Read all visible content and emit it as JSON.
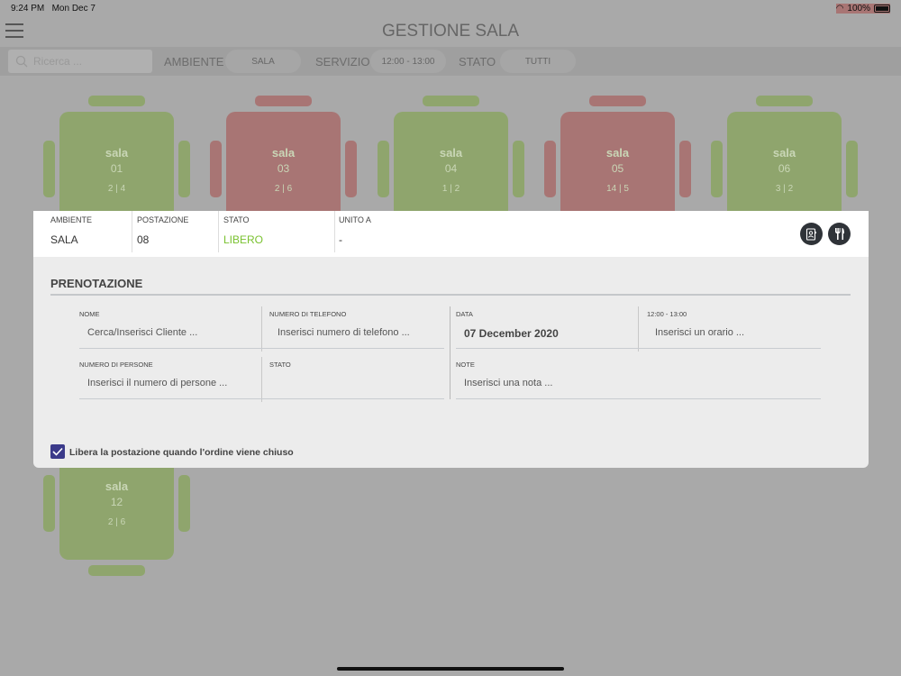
{
  "status_bar": {
    "time": "9:24 PM",
    "date": "Mon Dec 7",
    "battery": "100%"
  },
  "header": {
    "title": "GESTIONE SALA"
  },
  "filters": {
    "search_placeholder": "Ricerca ...",
    "ambiente_label": "AMBIENTE",
    "ambiente_value": "SALA",
    "servizio_label": "SERVIZIO",
    "servizio_value": "12:00 - 13:00",
    "stato_label": "STATO",
    "stato_value": "TUTTI"
  },
  "tables": [
    {
      "name": "sala",
      "number": "01",
      "seats": "2 | 4",
      "status": "free"
    },
    {
      "name": "sala",
      "number": "03",
      "seats": "2 | 6",
      "status": "occupied"
    },
    {
      "name": "sala",
      "number": "04",
      "seats": "1 | 2",
      "status": "free"
    },
    {
      "name": "sala",
      "number": "05",
      "seats": "14 | 5",
      "status": "occupied"
    },
    {
      "name": "sala",
      "number": "06",
      "seats": "3 | 2",
      "status": "free"
    },
    {
      "name": "sala",
      "number": "12",
      "seats": "2 | 6",
      "status": "free"
    }
  ],
  "colors": {
    "free": "#8fa56d",
    "occupied": "#a87574",
    "libero": "#7ac230",
    "accent": "#3b3a8a"
  },
  "modal": {
    "info": [
      {
        "label": "AMBIENTE",
        "value": "SALA"
      },
      {
        "label": "POSTAZIONE",
        "value": "08"
      },
      {
        "label": "STATO",
        "value": "LIBERO"
      },
      {
        "label": "UNITO A",
        "value": "-"
      }
    ],
    "section_title": "PRENOTAZIONE",
    "fields": {
      "nome": {
        "label": "NOME",
        "placeholder": "Cerca/Inserisci Cliente ..."
      },
      "telefono": {
        "label": "NUMERO DI TELEFONO",
        "placeholder": "Inserisci numero di telefono ..."
      },
      "data": {
        "label": "DATA",
        "value": "07 December 2020"
      },
      "orario": {
        "label": "12:00 - 13:00",
        "placeholder": "Inserisci un orario ..."
      },
      "persone": {
        "label": "NUMERO DI PERSONE",
        "placeholder": "Inserisci il numero di persone ..."
      },
      "stato": {
        "label": "STATO",
        "value": ""
      },
      "note": {
        "label": "NOTE",
        "placeholder": "Inserisci una nota ..."
      }
    },
    "checkbox_label": "Libera la postazione quando l'ordine viene chiuso",
    "checkbox_checked": true
  }
}
